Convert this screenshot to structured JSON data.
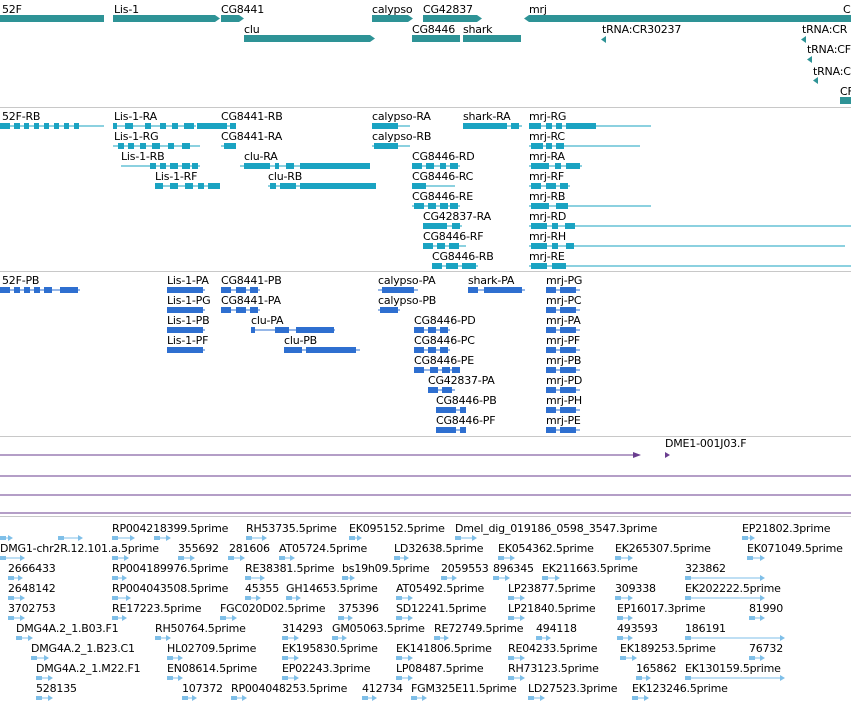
{
  "colors": {
    "gene": "#2e9396",
    "mrna": "#1aa3c2",
    "cds": "#2e6fd0",
    "match_line": "#6a3d8f",
    "est": "#7fbfe8",
    "separator": "#c8c8c8"
  },
  "tracks": {
    "genes": {
      "labels": [
        {
          "text": "52F"
        },
        {
          "text": "Lis-1"
        },
        {
          "text": "CG8441"
        },
        {
          "text": "calypso"
        },
        {
          "text": "CG42837"
        },
        {
          "text": "mrj"
        },
        {
          "text": "C"
        },
        {
          "text": "clu"
        },
        {
          "text": "CG8446"
        },
        {
          "text": "shark"
        },
        {
          "text": "tRNA:CR30237"
        },
        {
          "text": "tRNA:CR"
        },
        {
          "text": "tRNA:CF"
        },
        {
          "text": "tRNA:C"
        },
        {
          "text": "CF"
        }
      ]
    },
    "transcripts": {
      "labels": [
        {
          "text": "52F-RB"
        },
        {
          "text": "Lis-1-RA"
        },
        {
          "text": "CG8441-RB"
        },
        {
          "text": "calypso-RA"
        },
        {
          "text": "shark-RA"
        },
        {
          "text": "mrj-RG"
        },
        {
          "text": "Lis-1-RG"
        },
        {
          "text": "CG8441-RA"
        },
        {
          "text": "calypso-RB"
        },
        {
          "text": "mrj-RC"
        },
        {
          "text": "Lis-1-RB"
        },
        {
          "text": "clu-RA"
        },
        {
          "text": "CG8446-RD"
        },
        {
          "text": "mrj-RA"
        },
        {
          "text": "Lis-1-RF"
        },
        {
          "text": "clu-RB"
        },
        {
          "text": "CG8446-RC"
        },
        {
          "text": "mrj-RF"
        },
        {
          "text": "CG8446-RE"
        },
        {
          "text": "mrj-RB"
        },
        {
          "text": "CG42837-RA"
        },
        {
          "text": "mrj-RD"
        },
        {
          "text": "CG8446-RF"
        },
        {
          "text": "mrj-RH"
        },
        {
          "text": "CG8446-RB"
        },
        {
          "text": "mrj-RE"
        }
      ]
    },
    "proteins": {
      "labels": [
        {
          "text": "52F-PB"
        },
        {
          "text": "Lis-1-PA"
        },
        {
          "text": "CG8441-PB"
        },
        {
          "text": "calypso-PA"
        },
        {
          "text": "shark-PA"
        },
        {
          "text": "mrj-PG"
        },
        {
          "text": "Lis-1-PG"
        },
        {
          "text": "CG8441-PA"
        },
        {
          "text": "calypso-PB"
        },
        {
          "text": "mrj-PC"
        },
        {
          "text": "Lis-1-PB"
        },
        {
          "text": "clu-PA"
        },
        {
          "text": "CG8446-PD"
        },
        {
          "text": "mrj-PA"
        },
        {
          "text": "Lis-1-PF"
        },
        {
          "text": "clu-PB"
        },
        {
          "text": "CG8446-PC"
        },
        {
          "text": "mrj-PF"
        },
        {
          "text": "CG8446-PE"
        },
        {
          "text": "mrj-PB"
        },
        {
          "text": "CG42837-PA"
        },
        {
          "text": "mrj-PD"
        },
        {
          "text": "CG8446-PB"
        },
        {
          "text": "mrj-PH"
        },
        {
          "text": "CG8446-PF"
        },
        {
          "text": "mrj-PE"
        }
      ]
    },
    "matches": {
      "labels": [
        {
          "text": "DME1-001J03.F"
        }
      ]
    },
    "ests": {
      "labels": [
        {
          "text": "RP004218399.5prime"
        },
        {
          "text": "RH53735.5prime"
        },
        {
          "text": "EK095152.5prime"
        },
        {
          "text": "Dmel_dig_019186_0598_3547.3prime"
        },
        {
          "text": "EP21802.3prime"
        },
        {
          "text": "DMG1-chr2R.12.101.a.5prime"
        },
        {
          "text": "355692"
        },
        {
          "text": "281606"
        },
        {
          "text": "AT05724.5prime"
        },
        {
          "text": "LD32638.5prime"
        },
        {
          "text": "EK054362.5prime"
        },
        {
          "text": "EK265307.5prime"
        },
        {
          "text": "EK071049.5prime"
        },
        {
          "text": "2666433"
        },
        {
          "text": "RP004189976.5prime"
        },
        {
          "text": "RE38381.5prime"
        },
        {
          "text": "bs19h09.5prime"
        },
        {
          "text": "2059553"
        },
        {
          "text": "896345"
        },
        {
          "text": "EK211663.5prime"
        },
        {
          "text": "323862"
        },
        {
          "text": "2648142"
        },
        {
          "text": "RP004043508.5prime"
        },
        {
          "text": "45355"
        },
        {
          "text": "GH14653.5prime"
        },
        {
          "text": "AT05492.5prime"
        },
        {
          "text": "LP23877.5prime"
        },
        {
          "text": "309338"
        },
        {
          "text": "EK202222.5prime"
        },
        {
          "text": "3702753"
        },
        {
          "text": "RE17223.5prime"
        },
        {
          "text": "FGC020D02.5prime"
        },
        {
          "text": "375396"
        },
        {
          "text": "SD12241.5prime"
        },
        {
          "text": "LP21840.5prime"
        },
        {
          "text": "EP16017.3prime"
        },
        {
          "text": "81990"
        },
        {
          "text": "DMG4A.2_1.B03.F1"
        },
        {
          "text": "RH50764.5prime"
        },
        {
          "text": "314293"
        },
        {
          "text": "GM05063.5prime"
        },
        {
          "text": "RE72749.5prime"
        },
        {
          "text": "494118"
        },
        {
          "text": "493593"
        },
        {
          "text": "186191"
        },
        {
          "text": "DMG4A.2_1.B23.C1"
        },
        {
          "text": "HL02709.5prime"
        },
        {
          "text": "EK195830.5prime"
        },
        {
          "text": "EK141806.5prime"
        },
        {
          "text": "RE04233.5prime"
        },
        {
          "text": "EK189253.5prime"
        },
        {
          "text": "76732"
        },
        {
          "text": "DMG4A.2_1.M22.F1"
        },
        {
          "text": "EN08614.5prime"
        },
        {
          "text": "EP02243.3prime"
        },
        {
          "text": "LP08487.5prime"
        },
        {
          "text": "RH73123.5prime"
        },
        {
          "text": "165862"
        },
        {
          "text": "EK130159.5prime"
        },
        {
          "text": "528135"
        },
        {
          "text": "107372"
        },
        {
          "text": "RP004048253.5prime"
        },
        {
          "text": "412734"
        },
        {
          "text": "FGM325E11.5prime"
        },
        {
          "text": "LD27523.3prime"
        },
        {
          "text": "EK123246.5prime"
        }
      ]
    }
  }
}
